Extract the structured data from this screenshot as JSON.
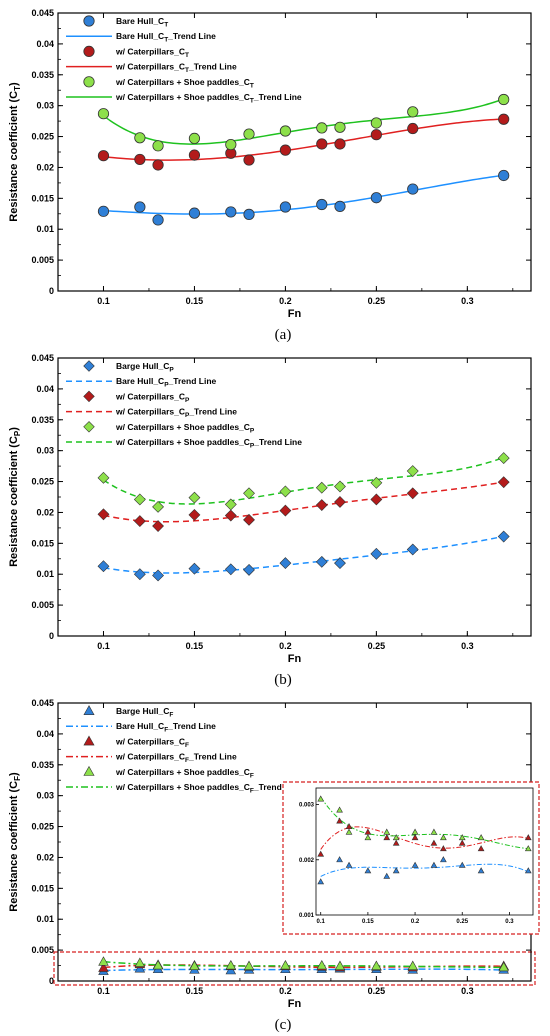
{
  "colors": {
    "blue": "#2f7fd6",
    "red": "#b31b1b",
    "green": "#8de04a",
    "green_line": "#1fc21f",
    "red_line": "#e02020",
    "blue_line": "#1e90ff",
    "highlight": "#d62020"
  },
  "chart_data": [
    {
      "id": "a",
      "type": "scatter",
      "caption": "(a)",
      "xlabel": "Fn",
      "ylabel": "Resistance coefficient (C",
      "ylabel_sub": "T",
      "ylabel_close": ")",
      "xlim": [
        0.075,
        0.335
      ],
      "ylim": [
        0,
        0.045
      ],
      "xticks": [
        "0.1",
        "0.15",
        "0.2",
        "0.25",
        "0.3"
      ],
      "yticks": [
        "0",
        "0.005",
        "0.01",
        "0.015",
        "0.02",
        "0.025",
        "0.03",
        "0.035",
        "0.04",
        "0.045"
      ],
      "marker": "circle",
      "x": [
        0.1,
        0.12,
        0.13,
        0.15,
        0.17,
        0.18,
        0.2,
        0.22,
        0.23,
        0.25,
        0.27,
        0.32
      ],
      "legend": [
        {
          "kind": "marker",
          "color": "blue",
          "text": "Bare Hull_C",
          "sub": "T",
          "tail": ""
        },
        {
          "kind": "line",
          "color": "blue_line",
          "dash": "solid",
          "text": "Bare Hull_C",
          "sub": "T",
          "tail": "_Trend Line"
        },
        {
          "kind": "marker",
          "color": "red",
          "text": "w/ Caterpillars_C",
          "sub": "T",
          "tail": ""
        },
        {
          "kind": "line",
          "color": "red_line",
          "dash": "solid",
          "text": "w/ Caterpillars_C",
          "sub": "T",
          "tail": "_Trend Line"
        },
        {
          "kind": "marker",
          "color": "green",
          "text": "w/ Caterpillars + Shoe paddles_C",
          "sub": "T",
          "tail": ""
        },
        {
          "kind": "line",
          "color": "green_line",
          "dash": "solid",
          "text": "w/ Caterpillars + Shoe paddles_C",
          "sub": "T",
          "tail": "_Trend Line"
        }
      ],
      "series": [
        {
          "color": "blue",
          "line_color": "blue_line",
          "values": [
            0.0129,
            0.0136,
            0.0115,
            0.0126,
            0.0128,
            0.0124,
            0.0136,
            0.014,
            0.0137,
            0.0151,
            0.0165,
            0.0187
          ]
        },
        {
          "color": "red",
          "line_color": "red_line",
          "values": [
            0.0219,
            0.0213,
            0.0204,
            0.022,
            0.0223,
            0.0212,
            0.0228,
            0.0238,
            0.0238,
            0.0253,
            0.0263,
            0.0278
          ]
        },
        {
          "color": "green",
          "line_color": "green_line",
          "values": [
            0.0287,
            0.0248,
            0.0235,
            0.0247,
            0.0237,
            0.0254,
            0.0259,
            0.0264,
            0.0265,
            0.0272,
            0.029,
            0.031
          ]
        }
      ]
    },
    {
      "id": "b",
      "type": "scatter",
      "caption": "(b)",
      "xlabel": "Fn",
      "ylabel": "Resistance coefficient (C",
      "ylabel_sub": "P",
      "ylabel_close": ")",
      "xlim": [
        0.075,
        0.335
      ],
      "ylim": [
        0,
        0.045
      ],
      "xticks": [
        "0.1",
        "0.15",
        "0.2",
        "0.25",
        "0.3"
      ],
      "yticks": [
        "0",
        "0.005",
        "0.01",
        "0.015",
        "0.02",
        "0.025",
        "0.03",
        "0.035",
        "0.04",
        "0.045"
      ],
      "marker": "diamond",
      "x": [
        0.1,
        0.12,
        0.13,
        0.15,
        0.17,
        0.18,
        0.2,
        0.22,
        0.23,
        0.25,
        0.27,
        0.32
      ],
      "legend": [
        {
          "kind": "marker",
          "color": "blue",
          "text": "Barge Hull_C",
          "sub": "P",
          "tail": ""
        },
        {
          "kind": "line",
          "color": "blue_line",
          "dash": "dash",
          "text": "Bare Hull_C",
          "sub": "P",
          "tail": "_Trend Line"
        },
        {
          "kind": "marker",
          "color": "red",
          "text": "w/ Caterpillars_C",
          "sub": "P",
          "tail": ""
        },
        {
          "kind": "line",
          "color": "red_line",
          "dash": "dash",
          "text": "w/ Caterpillars_C",
          "sub": "P",
          "tail": "_Trend Line"
        },
        {
          "kind": "marker",
          "color": "green",
          "text": "w/ Caterpillars + Shoe paddles_C",
          "sub": "P",
          "tail": ""
        },
        {
          "kind": "line",
          "color": "green_line",
          "dash": "dash",
          "text": "w/ Caterpillars + Shoe paddles_C",
          "sub": "P",
          "tail": "_Trend Line"
        }
      ],
      "series": [
        {
          "color": "blue",
          "line_color": "blue_line",
          "values": [
            0.0113,
            0.01,
            0.0098,
            0.0109,
            0.0108,
            0.0107,
            0.0118,
            0.012,
            0.0118,
            0.0133,
            0.014,
            0.0161
          ]
        },
        {
          "color": "red",
          "line_color": "red_line",
          "values": [
            0.0197,
            0.0186,
            0.0178,
            0.0196,
            0.0195,
            0.0188,
            0.0203,
            0.0212,
            0.0217,
            0.0221,
            0.0231,
            0.0249
          ]
        },
        {
          "color": "green",
          "line_color": "green_line",
          "values": [
            0.0256,
            0.0221,
            0.0209,
            0.0224,
            0.0213,
            0.0231,
            0.0234,
            0.024,
            0.0242,
            0.0248,
            0.0267,
            0.0288
          ]
        }
      ]
    },
    {
      "id": "c",
      "type": "scatter",
      "caption": "(c)",
      "xlabel": "Fn",
      "ylabel": "Resistance coefficient (C",
      "ylabel_sub": "F",
      "ylabel_close": ")",
      "xlim": [
        0.075,
        0.335
      ],
      "ylim": [
        0,
        0.045
      ],
      "xticks": [
        "0.1",
        "0.15",
        "0.2",
        "0.25",
        "0.3"
      ],
      "yticks": [
        "0",
        "0.005",
        "0.01",
        "0.015",
        "0.02",
        "0.025",
        "0.03",
        "0.035",
        "0.04",
        "0.045"
      ],
      "marker": "triangle",
      "x": [
        0.1,
        0.12,
        0.13,
        0.15,
        0.17,
        0.18,
        0.2,
        0.22,
        0.23,
        0.25,
        0.27,
        0.32
      ],
      "legend": [
        {
          "kind": "marker",
          "color": "blue",
          "text": "Barge Hull_C",
          "sub": "F",
          "tail": ""
        },
        {
          "kind": "line",
          "color": "blue_line",
          "dash": "dashdot",
          "text": "Bare Hull_C",
          "sub": "F",
          "tail": "_Trend Line"
        },
        {
          "kind": "marker",
          "color": "red",
          "text": "w/ Caterpillars_C",
          "sub": "F",
          "tail": ""
        },
        {
          "kind": "line",
          "color": "red_line",
          "dash": "dashdot",
          "text": "w/ Caterpillars_C",
          "sub": "F",
          "tail": "_Trend Line"
        },
        {
          "kind": "marker",
          "color": "green",
          "text": "w/ Caterpillars + Shoe paddles_C",
          "sub": "F",
          "tail": ""
        },
        {
          "kind": "line",
          "color": "green_line",
          "dash": "dashdot",
          "text": "w/ Caterpillars + Shoe paddles_C",
          "sub": "F",
          "tail": "_Trend Line"
        }
      ],
      "series": [
        {
          "color": "blue",
          "line_color": "blue_line",
          "values": [
            0.0016,
            0.002,
            0.0019,
            0.0018,
            0.0017,
            0.0018,
            0.0019,
            0.0019,
            0.002,
            0.0019,
            0.0018,
            0.0018
          ]
        },
        {
          "color": "red",
          "line_color": "red_line",
          "values": [
            0.0021,
            0.0027,
            0.0026,
            0.0025,
            0.0024,
            0.0023,
            0.0024,
            0.0023,
            0.0022,
            0.0023,
            0.0022,
            0.0024
          ]
        },
        {
          "color": "green",
          "line_color": "green_line",
          "values": [
            0.0031,
            0.0029,
            0.0025,
            0.0024,
            0.0025,
            0.0024,
            0.0025,
            0.0025,
            0.0024,
            0.0024,
            0.0024,
            0.0022
          ]
        }
      ],
      "inset": {
        "xlim": [
          0.095,
          0.325
        ],
        "ylim": [
          0.001,
          0.0033
        ],
        "xticks": [
          "0.1",
          "0.15",
          "0.2",
          "0.25",
          "0.3"
        ],
        "yticks": [
          "0.001",
          "0.002",
          "0.003"
        ]
      }
    }
  ]
}
